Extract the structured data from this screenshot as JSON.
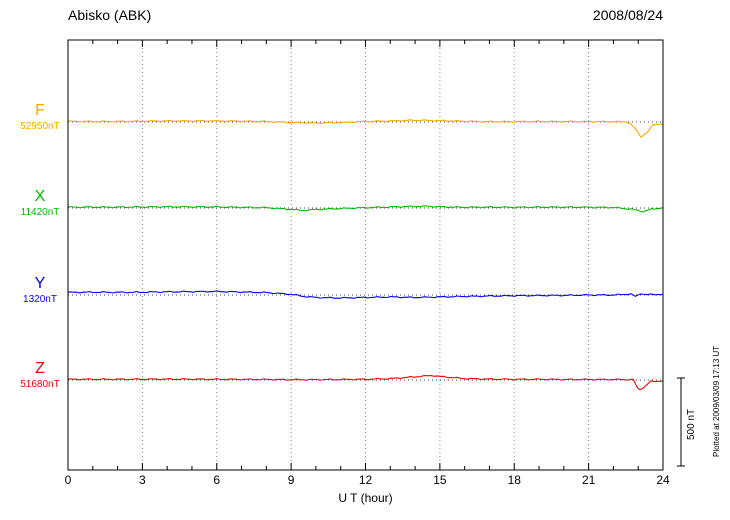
{
  "chart_data": {
    "type": "line",
    "title": "Abisko (ABK)",
    "date": "2008/08/24",
    "xlabel": "U T (hour)",
    "xlim": [
      0,
      24
    ],
    "xticks": [
      0,
      3,
      6,
      9,
      12,
      15,
      18,
      21,
      24
    ],
    "grid": "dotted vertical lines every 3 hours; dotted horizontal baseline per component",
    "legend_position": "left",
    "scale_bar_label": "500 nT",
    "scale_bar_nT": 500,
    "annotation": "Plotted at 2009/03/09 17:13 UT",
    "series": [
      {
        "name": "F",
        "base_label": "52950nT",
        "base_nT": 52950,
        "color": "#FFA500",
        "points_hour_dnT": [
          [
            0,
            3
          ],
          [
            2,
            3
          ],
          [
            4,
            6
          ],
          [
            6,
            6
          ],
          [
            8,
            3
          ],
          [
            9,
            -3
          ],
          [
            10,
            -6
          ],
          [
            11,
            -3
          ],
          [
            12,
            3
          ],
          [
            13,
            6
          ],
          [
            14,
            10
          ],
          [
            15,
            8
          ],
          [
            16,
            4
          ],
          [
            17,
            2
          ],
          [
            18,
            2
          ],
          [
            19,
            3
          ],
          [
            20,
            3
          ],
          [
            21,
            2
          ],
          [
            22,
            2
          ],
          [
            22.6,
            0
          ],
          [
            22.9,
            -40
          ],
          [
            23.1,
            -85
          ],
          [
            23.4,
            -55
          ],
          [
            23.6,
            -15
          ],
          [
            24,
            -10
          ]
        ]
      },
      {
        "name": "X",
        "base_label": "11420nT",
        "base_nT": 11420,
        "color": "#00BB00",
        "points_hour_dnT": [
          [
            0,
            5
          ],
          [
            2,
            5
          ],
          [
            4,
            7
          ],
          [
            6,
            6
          ],
          [
            8,
            2
          ],
          [
            9,
            -8
          ],
          [
            9.5,
            -14
          ],
          [
            10,
            -8
          ],
          [
            11,
            -3
          ],
          [
            12,
            2
          ],
          [
            13,
            6
          ],
          [
            14,
            9
          ],
          [
            14.5,
            10
          ],
          [
            15,
            7
          ],
          [
            16,
            4
          ],
          [
            17,
            5
          ],
          [
            18,
            4
          ],
          [
            19,
            5
          ],
          [
            20,
            5
          ],
          [
            21,
            4
          ],
          [
            22,
            3
          ],
          [
            22.8,
            -8
          ],
          [
            23.2,
            -20
          ],
          [
            23.5,
            -8
          ],
          [
            24,
            2
          ]
        ]
      },
      {
        "name": "Y",
        "base_label": "1320nT",
        "base_nT": 1320,
        "color": "#0000FF",
        "points_hour_dnT": [
          [
            0,
            15
          ],
          [
            1,
            16
          ],
          [
            2,
            15
          ],
          [
            3,
            16
          ],
          [
            4,
            18
          ],
          [
            5,
            19
          ],
          [
            6,
            20
          ],
          [
            7,
            17
          ],
          [
            8,
            14
          ],
          [
            9,
            4
          ],
          [
            9.5,
            -8
          ],
          [
            10,
            -14
          ],
          [
            11,
            -17
          ],
          [
            12,
            -14
          ],
          [
            13,
            -11
          ],
          [
            14,
            -14
          ],
          [
            15,
            -11
          ],
          [
            16,
            -8
          ],
          [
            17,
            -6
          ],
          [
            18,
            -4
          ],
          [
            19,
            -3
          ],
          [
            20,
            -2
          ],
          [
            21,
            0
          ],
          [
            22,
            0
          ],
          [
            22.7,
            6
          ],
          [
            22.9,
            -10
          ],
          [
            23.1,
            10
          ],
          [
            23.3,
            2
          ],
          [
            24,
            4
          ]
        ]
      },
      {
        "name": "Z",
        "base_label": "51680nT",
        "base_nT": 51680,
        "color": "#EE0000",
        "points_hour_dnT": [
          [
            0,
            4
          ],
          [
            2,
            4
          ],
          [
            4,
            5
          ],
          [
            6,
            4
          ],
          [
            8,
            3
          ],
          [
            9,
            2
          ],
          [
            10,
            2
          ],
          [
            11,
            3
          ],
          [
            12,
            4
          ],
          [
            13,
            8
          ],
          [
            14,
            18
          ],
          [
            14.7,
            26
          ],
          [
            15,
            20
          ],
          [
            16,
            8
          ],
          [
            17,
            5
          ],
          [
            18,
            4
          ],
          [
            19,
            4
          ],
          [
            20,
            3
          ],
          [
            21,
            3
          ],
          [
            22,
            3
          ],
          [
            22.8,
            2
          ],
          [
            23,
            -55
          ],
          [
            23.2,
            -45
          ],
          [
            23.5,
            -8
          ],
          [
            24,
            -5
          ]
        ]
      }
    ]
  }
}
